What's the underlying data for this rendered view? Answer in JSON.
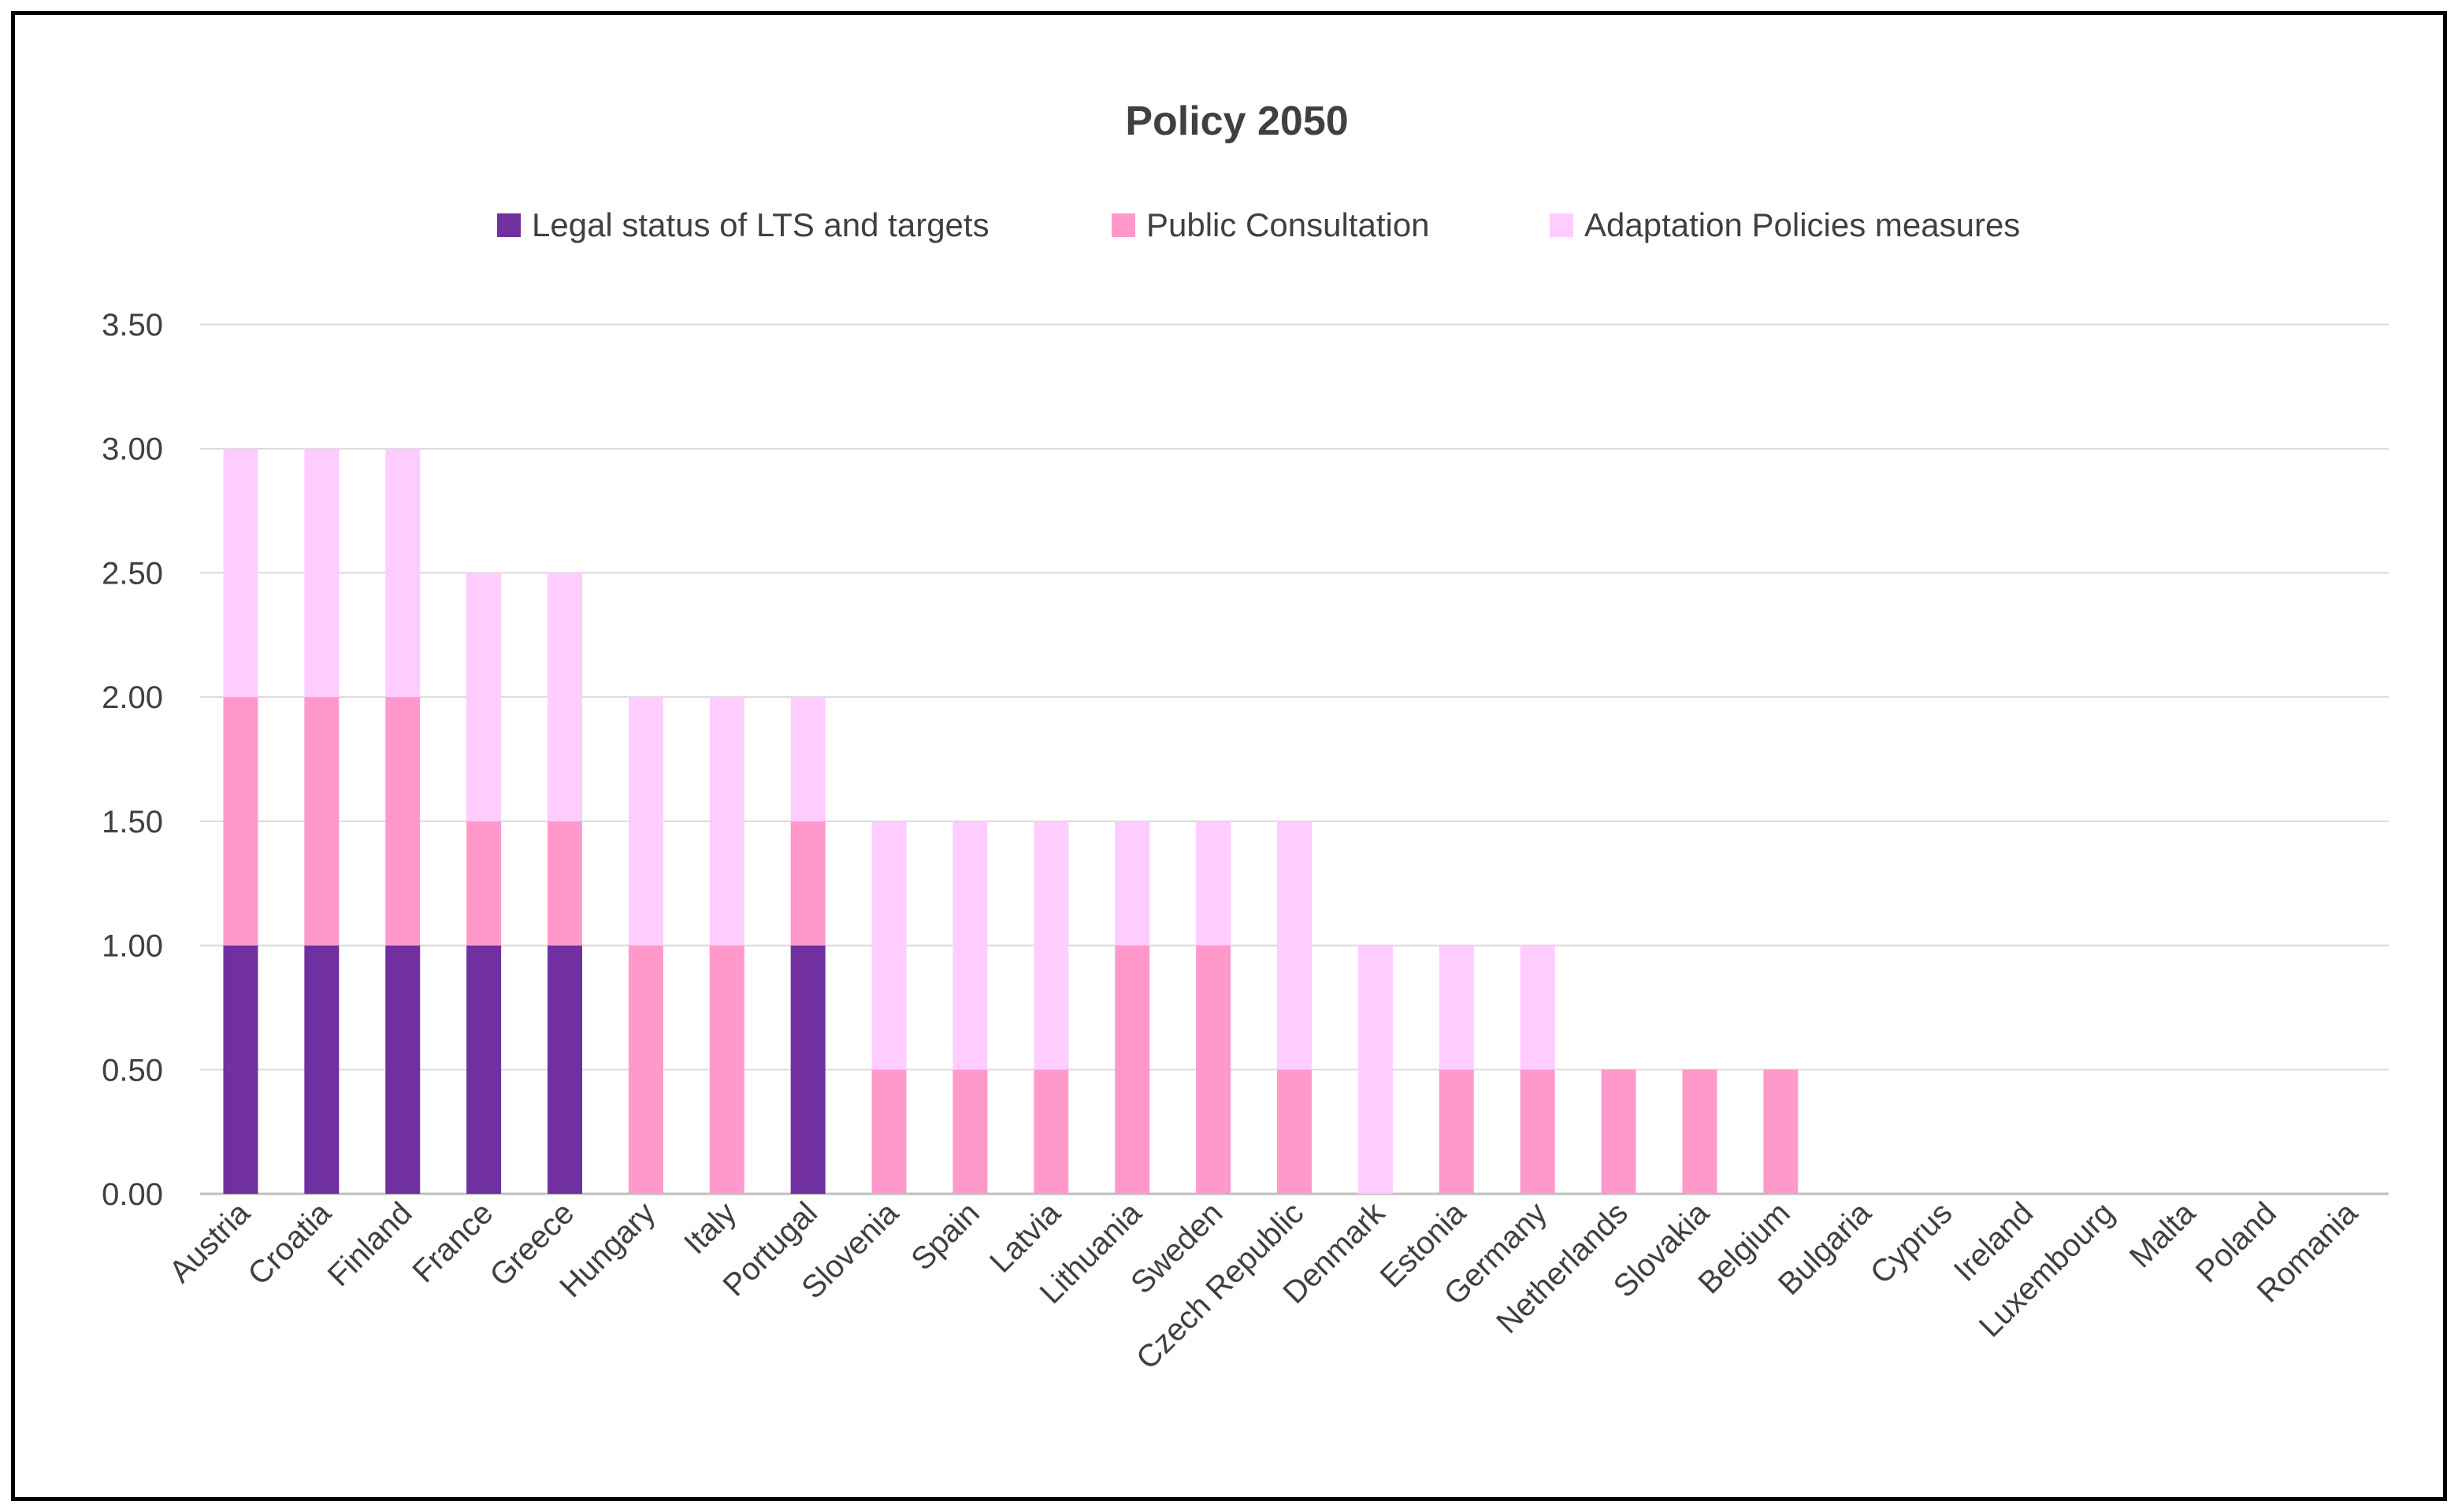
{
  "chart_data": {
    "type": "bar",
    "stacked": true,
    "title": "Policy 2050",
    "xlabel": "",
    "ylabel": "",
    "ylim": [
      0,
      3.5
    ],
    "yticks": [
      "0.00",
      "0.50",
      "1.00",
      "1.50",
      "2.00",
      "2.50",
      "3.00",
      "3.50"
    ],
    "grid": true,
    "legend_position": "top",
    "categories": [
      "Austria",
      "Croatia",
      "Finland",
      "France",
      "Greece",
      "Hungary",
      "Italy",
      "Portugal",
      "Slovenia",
      "Spain",
      "Latvia",
      "Lithuania",
      "Sweden",
      "Czech Republic",
      "Denmark",
      "Estonia",
      "Germany",
      "Netherlands",
      "Slovakia",
      "Belgium",
      "Bulgaria",
      "Cyprus",
      "Ireland",
      "Luxembourg",
      "Malta",
      "Poland",
      "Romania"
    ],
    "series": [
      {
        "name": "Legal status of LTS and targets",
        "color": "#7030a0",
        "values": [
          1,
          1,
          1,
          1,
          1,
          0,
          0,
          1,
          0,
          0,
          0,
          0,
          0,
          0,
          0,
          0,
          0,
          0,
          0,
          0,
          0,
          0,
          0,
          0,
          0,
          0,
          0
        ]
      },
      {
        "name": "Public Consultation",
        "color": "#ff99cc",
        "values": [
          1,
          1,
          1,
          0.5,
          0.5,
          1,
          1,
          0.5,
          0.5,
          0.5,
          0.5,
          1,
          1,
          0.5,
          0,
          0.5,
          0.5,
          0.5,
          0.5,
          0.5,
          0,
          0,
          0,
          0,
          0,
          0,
          0
        ]
      },
      {
        "name": "Adaptation Policies measures",
        "color": "#ffccff",
        "values": [
          1,
          1,
          1,
          1,
          1,
          1,
          1,
          0.5,
          1,
          1,
          1,
          0.5,
          0.5,
          1,
          1,
          0.5,
          0.5,
          0,
          0,
          0,
          0,
          0,
          0,
          0,
          0,
          0,
          0
        ]
      }
    ]
  }
}
